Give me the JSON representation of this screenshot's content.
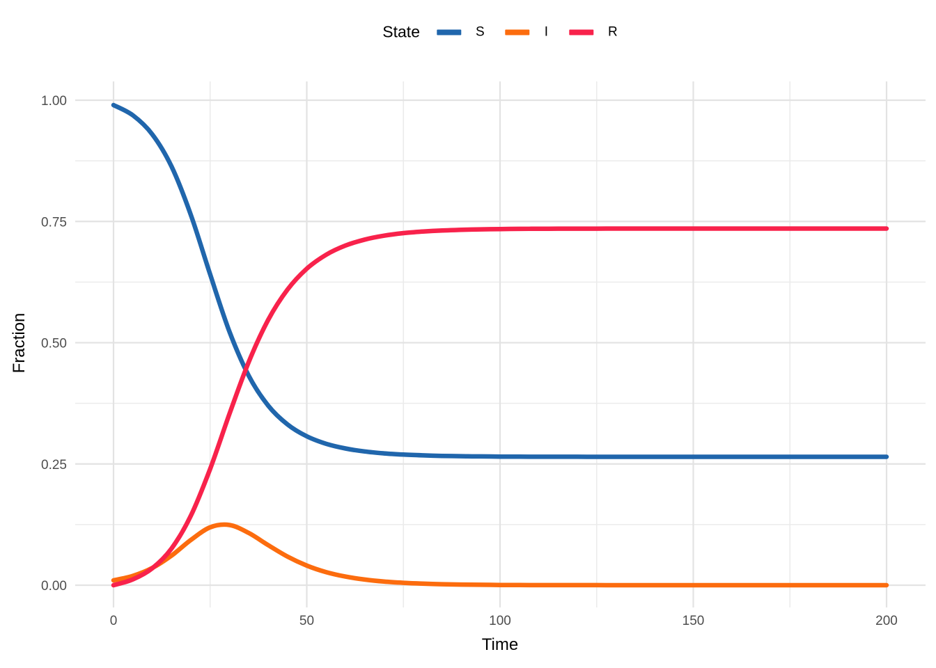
{
  "legend": {
    "title": "State"
  },
  "axes": {
    "x_title": "Time",
    "y_title": "Fraction"
  },
  "colors": {
    "background": "#ffffff",
    "grid_major": "#e3e3e3",
    "grid_minor": "#ebebeb",
    "tick_label": "#4d4d4d",
    "series_S": "#2066ac",
    "series_I": "#fc6c0e",
    "series_R": "#f8224b"
  },
  "chart_data": {
    "type": "line",
    "title": "",
    "xlabel": "Time",
    "ylabel": "Fraction",
    "legend_title": "State",
    "legend_position": "top",
    "grid": true,
    "xlim": [
      0,
      200
    ],
    "ylim": [
      0,
      1
    ],
    "x_ticks": [
      0,
      50,
      100,
      150,
      200
    ],
    "x_tick_labels": [
      "0",
      "50",
      "100",
      "150",
      "200"
    ],
    "x_minor_ticks": [
      25,
      75,
      125,
      175
    ],
    "y_ticks": [
      0,
      0.25,
      0.5,
      0.75,
      1.0
    ],
    "y_tick_labels": [
      "0.00",
      "0.25",
      "0.50",
      "0.75",
      "1.00"
    ],
    "y_minor_ticks": [
      0.125,
      0.375,
      0.625,
      0.875
    ],
    "x": [
      0,
      5,
      10,
      15,
      20,
      25,
      30,
      35,
      40,
      45,
      50,
      55,
      60,
      65,
      70,
      75,
      80,
      85,
      90,
      95,
      100,
      105,
      110,
      115,
      120,
      125,
      130,
      135,
      140,
      145,
      150,
      155,
      160,
      165,
      170,
      175,
      180,
      185,
      190,
      195,
      200
    ],
    "series": [
      {
        "name": "S",
        "color": "#2066ac",
        "values": [
          0.99,
          0.9688,
          0.9299,
          0.8634,
          0.7636,
          0.6408,
          0.5226,
          0.4316,
          0.3704,
          0.3315,
          0.307,
          0.2916,
          0.2819,
          0.2757,
          0.2718,
          0.2693,
          0.2677,
          0.2666,
          0.266,
          0.2655,
          0.2652,
          0.265,
          0.2649,
          0.2648,
          0.2648,
          0.2647,
          0.2647,
          0.2647,
          0.2647,
          0.2647,
          0.2647,
          0.2647,
          0.2647,
          0.2647,
          0.2647,
          0.2647,
          0.2647,
          0.2647,
          0.2647,
          0.2647,
          0.2647
        ]
      },
      {
        "name": "I",
        "color": "#fc6c0e",
        "values": [
          0.01,
          0.0192,
          0.0354,
          0.061,
          0.0932,
          0.1193,
          0.1241,
          0.1076,
          0.0826,
          0.059,
          0.0404,
          0.027,
          0.0178,
          0.0116,
          0.0075,
          0.0049,
          0.0032,
          0.002,
          0.0013,
          0.0008,
          0.0005,
          0.0003,
          0.0002,
          0.0001,
          0.0001,
          0.0001,
          0.0,
          0.0,
          0.0,
          0.0,
          0.0,
          0.0,
          0.0,
          0.0,
          0.0,
          0.0,
          0.0,
          0.0,
          0.0,
          0.0,
          0.0
        ]
      },
      {
        "name": "R",
        "color": "#f8224b",
        "values": [
          0.0,
          0.012,
          0.0347,
          0.0756,
          0.1432,
          0.2399,
          0.3533,
          0.4607,
          0.5469,
          0.6095,
          0.6526,
          0.6813,
          0.7003,
          0.7126,
          0.7207,
          0.7259,
          0.7292,
          0.7314,
          0.7327,
          0.7337,
          0.7343,
          0.7347,
          0.7349,
          0.7351,
          0.7352,
          0.7352,
          0.7353,
          0.7353,
          0.7353,
          0.7353,
          0.7353,
          0.7353,
          0.7353,
          0.7353,
          0.7353,
          0.7353,
          0.7353,
          0.7353,
          0.7353,
          0.7353,
          0.7353
        ]
      }
    ]
  }
}
